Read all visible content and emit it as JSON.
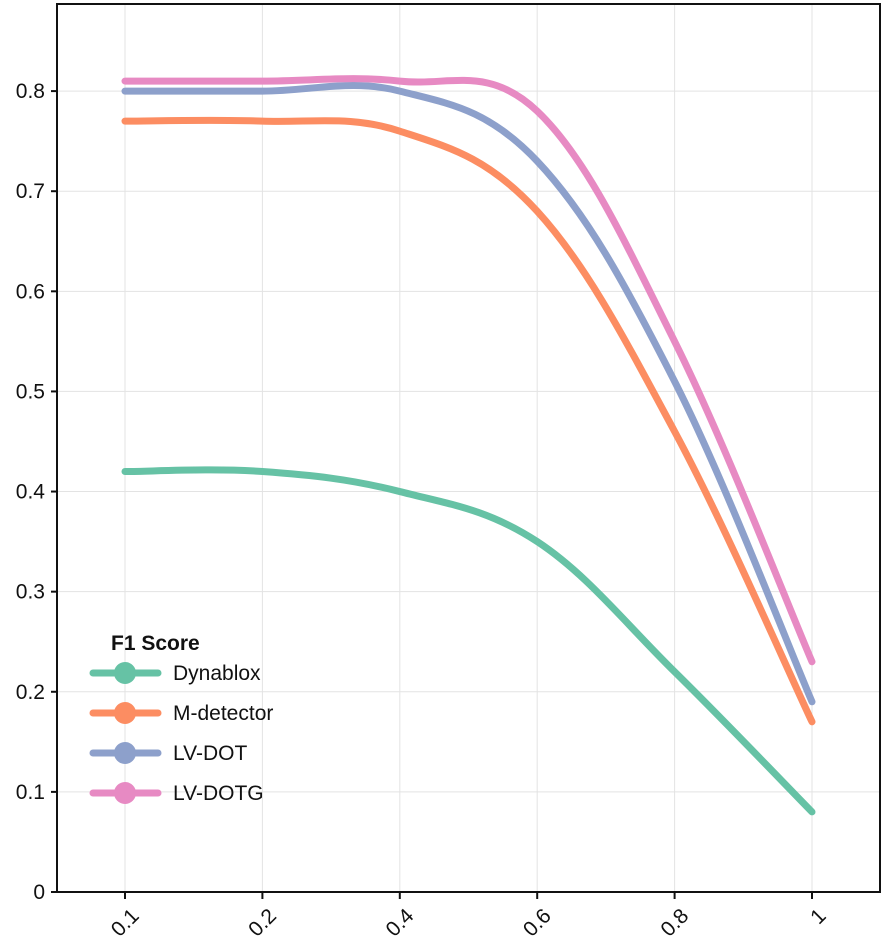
{
  "chart_data": {
    "type": "line",
    "title": "",
    "xlabel": "",
    "ylabel": "",
    "x": [
      0.1,
      0.2,
      0.4,
      0.6,
      0.8,
      1
    ],
    "x_tick_labels": [
      "0.1",
      "0.2",
      "0.4",
      "0.6",
      "0.8",
      "1"
    ],
    "y_ticks": [
      0,
      0.1,
      0.2,
      0.3,
      0.4,
      0.5,
      0.6,
      0.7,
      0.8
    ],
    "y_tick_labels": [
      "0",
      "0.1",
      "0.2",
      "0.3",
      "0.4",
      "0.5",
      "0.6",
      "0.7",
      "0.8"
    ],
    "ylim": [
      0,
      0.887
    ],
    "grid": true,
    "legend": {
      "title": "F1 Score",
      "placement": "bottom-left"
    },
    "series": [
      {
        "name": "Dynablox",
        "color": "#66c2a5",
        "values": [
          0.42,
          0.42,
          0.4,
          0.35,
          0.22,
          0.08
        ]
      },
      {
        "name": "M-detector",
        "color": "#fc8d62",
        "values": [
          0.77,
          0.77,
          0.76,
          0.68,
          0.46,
          0.17
        ]
      },
      {
        "name": "LV-DOT",
        "color": "#8da0cb",
        "values": [
          0.8,
          0.8,
          0.8,
          0.73,
          0.51,
          0.19
        ]
      },
      {
        "name": "LV-DOTG",
        "color": "#e78ac3",
        "values": [
          0.81,
          0.81,
          0.81,
          0.78,
          0.55,
          0.23
        ]
      }
    ]
  }
}
